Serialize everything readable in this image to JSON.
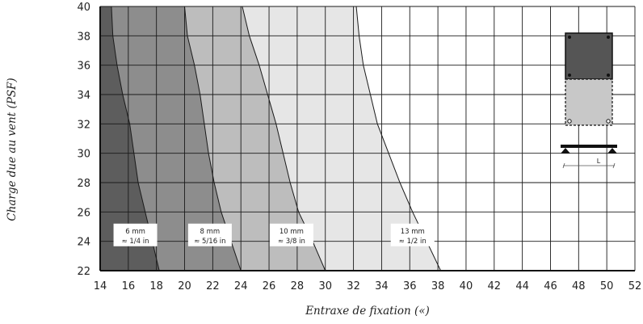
{
  "chart_data": {
    "type": "area",
    "title": "",
    "xlabel": "Entraxe de fixation («)",
    "ylabel": "Charge due au vent (PSF)",
    "xlim": [
      14,
      52
    ],
    "ylim": [
      22,
      40
    ],
    "x_ticks": [
      "14",
      "16",
      "18",
      "20",
      "22",
      "24",
      "26",
      "28",
      "30",
      "32",
      "34",
      "36",
      "38",
      "40",
      "42",
      "44",
      "46",
      "48",
      "50",
      "52"
    ],
    "y_ticks": [
      "22",
      "24",
      "26",
      "28",
      "30",
      "32",
      "34",
      "36",
      "38",
      "40"
    ],
    "grid": true,
    "series": [
      {
        "name": "6 mm ≈ 1/4 in",
        "label_line1": "6 mm",
        "label_line2": "≈ 1/4 in",
        "fill": "#5d5d5d",
        "boundary": [
          [
            18.2,
            22
          ],
          [
            17.7,
            24
          ],
          [
            17.2,
            26
          ],
          [
            16.7,
            28
          ],
          [
            16.4,
            30
          ],
          [
            16.1,
            32
          ],
          [
            15.6,
            34
          ],
          [
            15.2,
            36
          ],
          [
            14.9,
            38
          ],
          [
            14.8,
            40
          ]
        ]
      },
      {
        "name": "8 mm ≈ 5/16 in",
        "label_line1": "8 mm",
        "label_line2": "≈ 5/16 in",
        "fill": "#8d8d8d",
        "boundary": [
          [
            24,
            22
          ],
          [
            23.3,
            24
          ],
          [
            22.6,
            26
          ],
          [
            22.1,
            28
          ],
          [
            21.7,
            30
          ],
          [
            21.4,
            32
          ],
          [
            21.1,
            34
          ],
          [
            20.7,
            36
          ],
          [
            20.2,
            38
          ],
          [
            20,
            40
          ]
        ]
      },
      {
        "name": "10 mm ≈ 3/8 in",
        "label_line1": "10 mm",
        "label_line2": "≈ 3/8 in",
        "fill": "#bdbdbd",
        "boundary": [
          [
            30,
            22
          ],
          [
            29.1,
            24
          ],
          [
            28.1,
            26
          ],
          [
            27.5,
            28
          ],
          [
            27,
            30
          ],
          [
            26.5,
            32
          ],
          [
            25.9,
            34
          ],
          [
            25.3,
            36
          ],
          [
            24.6,
            38
          ],
          [
            24.1,
            40
          ]
        ]
      },
      {
        "name": "13 mm ≈ 1/2 in",
        "label_line1": "13 mm",
        "label_line2": "≈ 1/2 in",
        "fill": "#e6e6e6",
        "boundary": [
          [
            38.2,
            22
          ],
          [
            37.2,
            24
          ],
          [
            36.2,
            26
          ],
          [
            35.3,
            28
          ],
          [
            34.5,
            30
          ],
          [
            33.7,
            32
          ],
          [
            33.2,
            34
          ],
          [
            32.7,
            36
          ],
          [
            32.4,
            38
          ],
          [
            32.2,
            40
          ]
        ]
      }
    ]
  },
  "diagram": {
    "span_label": "L",
    "top_panel_color": "#555555",
    "bottom_panel_color": "#c8c8c8"
  }
}
